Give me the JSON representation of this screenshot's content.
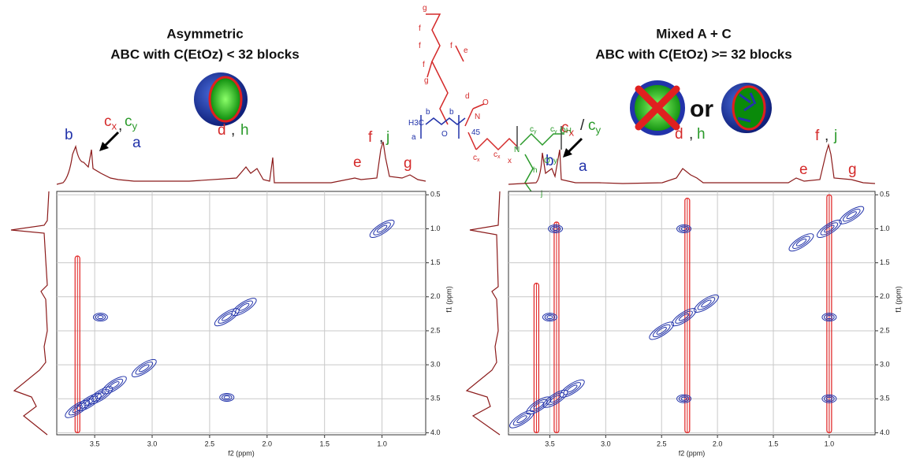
{
  "chart_data": [
    {
      "type": "contour",
      "title": [
        "Asymmetric",
        "ABC with C(EtOz) < 32 blocks"
      ],
      "xlabel": "f2 (ppm)",
      "ylabel": "f1 (ppm)",
      "xlim": [
        3.83,
        0.62
      ],
      "ylim": [
        0.45,
        4.03
      ],
      "xticks": [
        3.5,
        {
          "value": 3,
          "label": "3.0"
        },
        2.5,
        {
          "value": 2,
          "label": "2.0"
        },
        1.5,
        {
          "value": 1,
          "label": "1.0"
        }
      ],
      "yticks": [
        0.5,
        {
          "value": 1,
          "label": "1.0"
        },
        1.5,
        {
          "value": 2,
          "label": "2.0"
        },
        2.5,
        {
          "value": 3,
          "label": "3.0"
        },
        3.5,
        {
          "value": 4,
          "label": "4.0"
        }
      ],
      "grid": true,
      "positive": {
        "color": "#2233aa",
        "x": [
          3.65,
          3.55,
          3.45,
          3.45,
          3.33,
          3.07,
          2.35,
          2.2,
          2.35,
          1.0
        ],
        "values": [
          3.65,
          3.55,
          3.45,
          2.3,
          3.3,
          3.05,
          2.3,
          2.15,
          3.48,
          1.0
        ]
      },
      "negative": {
        "color": "#e02020",
        "x": [
          3.65
        ],
        "from": [
          1.4
        ],
        "to": [
          4.0
        ]
      },
      "peak_labels": [
        {
          "text": "b",
          "color": "#2233aa"
        },
        {
          "text": "c",
          "sub": "x",
          "color": "#d42a2a"
        },
        {
          "text": ",",
          "color": "#222222"
        },
        {
          "text": "c",
          "sub": "y",
          "color": "#2a9a2a"
        },
        {
          "text": "a",
          "color": "#2233aa"
        },
        {
          "text": "d",
          "color": "#d42a2a"
        },
        {
          "text": ",",
          "color": "#222222"
        },
        {
          "text": "h",
          "color": "#2a9a2a"
        },
        {
          "text": "f",
          "color": "#d42a2a"
        },
        {
          "text": ",",
          "color": "#222222"
        },
        {
          "text": "j",
          "color": "#2a9a2a"
        },
        {
          "text": "e",
          "color": "#d42a2a"
        },
        {
          "text": "g",
          "color": "#d42a2a"
        }
      ]
    },
    {
      "type": "contour",
      "title": [
        "Mixed A + C",
        "ABC with C(EtOz) >= 32 blocks"
      ],
      "xlabel": "f2 (ppm)",
      "ylabel": "f1 (ppm)",
      "xlim": [
        3.87,
        0.59
      ],
      "ylim": [
        0.45,
        4.03
      ],
      "xticks": [
        3.5,
        {
          "value": 3,
          "label": "3.0"
        },
        2.5,
        {
          "value": 2,
          "label": "2.0"
        },
        1.5,
        {
          "value": 1,
          "label": "1.0"
        }
      ],
      "yticks": [
        0.5,
        {
          "value": 1,
          "label": "1.0"
        },
        1.5,
        {
          "value": 2,
          "label": "2.0"
        },
        2.5,
        {
          "value": 3,
          "label": "3.0"
        },
        3.5,
        {
          "value": 4,
          "label": "4.0"
        }
      ],
      "grid": true,
      "positive": {
        "color": "#2233aa",
        "x": [
          3.75,
          3.6,
          3.45,
          3.45,
          3.5,
          3.3,
          2.3,
          2.3,
          2.3,
          2.1,
          2.5,
          1.0,
          1.0,
          1.0,
          1.25,
          0.8
        ],
        "values": [
          3.8,
          3.6,
          3.5,
          1.0,
          2.3,
          3.35,
          1.0,
          3.5,
          2.3,
          2.1,
          2.5,
          1.0,
          2.3,
          3.5,
          1.2,
          0.8
        ]
      },
      "negative": {
        "color": "#e02020",
        "x": [
          3.62,
          3.44,
          2.27,
          1.0
        ],
        "from": [
          1.8,
          0.9,
          0.55,
          0.5
        ],
        "to": [
          4.0,
          4.0,
          4.0,
          4.0
        ]
      },
      "peak_labels": [
        {
          "text": "b",
          "color": "#2233aa"
        },
        {
          "text": "c",
          "sub": "x",
          "color": "#d42a2a"
        },
        {
          "text": "/",
          "color": "#222222"
        },
        {
          "text": "c",
          "sub": "y",
          "color": "#2a9a2a"
        },
        {
          "text": "a",
          "color": "#2233aa"
        },
        {
          "text": "d",
          "color": "#d42a2a"
        },
        {
          "text": ",",
          "color": "#222222"
        },
        {
          "text": "h",
          "color": "#2a9a2a"
        },
        {
          "text": "f",
          "color": "#d42a2a"
        },
        {
          "text": ",",
          "color": "#222222"
        },
        {
          "text": "j",
          "color": "#2a9a2a"
        },
        {
          "text": "e",
          "color": "#d42a2a"
        },
        {
          "text": "g",
          "color": "#d42a2a"
        }
      ]
    }
  ],
  "or_text": "or",
  "structure": [
    {
      "text": "g",
      "color": "#d42a2a"
    },
    {
      "text": "f",
      "color": "#d42a2a"
    },
    {
      "text": "f",
      "color": "#d42a2a"
    },
    {
      "text": "f",
      "color": "#d42a2a"
    },
    {
      "text": "f",
      "color": "#d42a2a"
    },
    {
      "text": "e",
      "color": "#d42a2a"
    },
    {
      "text": "g",
      "color": "#d42a2a"
    },
    {
      "text": "d",
      "color": "#d42a2a"
    },
    {
      "text": "O",
      "color": "#d42a2a"
    },
    {
      "text": "H3C",
      "color": "#2233aa"
    },
    {
      "text": "O",
      "color": "#2233aa"
    },
    {
      "text": "b",
      "color": "#2233aa"
    },
    {
      "text": "b",
      "color": "#2233aa"
    },
    {
      "text": "a",
      "color": "#2233aa"
    },
    {
      "text": "45",
      "color": "#2233aa"
    },
    {
      "text": "N",
      "color": "#d42a2a"
    },
    {
      "text": "c",
      "sub": "x",
      "color": "#d42a2a"
    },
    {
      "text": "c",
      "sub": "x",
      "color": "#d42a2a"
    },
    {
      "text": "x",
      "color": "#d42a2a"
    },
    {
      "text": "N",
      "color": "#2a9a2a"
    },
    {
      "text": "c",
      "sub": "y",
      "color": "#2a9a2a"
    },
    {
      "text": "c",
      "sub": "y",
      "color": "#2a9a2a"
    },
    {
      "text": "y",
      "color": "#2a9a2a"
    },
    {
      "text": "OH",
      "color": "#2a9a2a"
    },
    {
      "text": "h",
      "color": "#2a9a2a"
    },
    {
      "text": "j",
      "color": "#2a9a2a"
    },
    {
      "text": "O",
      "color": "#2a9a2a"
    }
  ]
}
